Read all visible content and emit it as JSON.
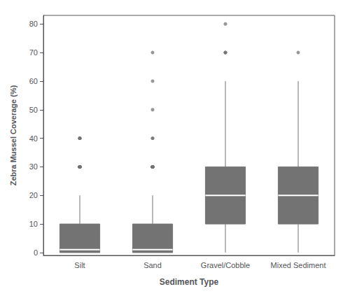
{
  "chart_data": {
    "type": "box",
    "xlabel": "Sediment Type",
    "ylabel": "Zebra Mussel Coverage (%)",
    "categories": [
      "Silt",
      "Sand",
      "Gravel/Cobble",
      "Mixed Sediment"
    ],
    "box_stats": [
      {
        "med": 1,
        "q1": 0,
        "q3": 10,
        "whislo": 0,
        "whishi": 20,
        "fliers": [
          30,
          30,
          30,
          30,
          30,
          30,
          30,
          30,
          30,
          30,
          30,
          30,
          30,
          30,
          30,
          30,
          30,
          30,
          30,
          30,
          40,
          40,
          40,
          40,
          40
        ]
      },
      {
        "med": 1,
        "q1": 0,
        "q3": 10,
        "whislo": 0,
        "whishi": 20,
        "fliers": [
          30,
          30,
          30,
          30,
          30,
          30,
          30,
          30,
          30,
          30,
          30,
          30,
          30,
          30,
          40,
          40,
          50,
          60,
          70
        ]
      },
      {
        "med": 20,
        "q1": 10,
        "q3": 30,
        "whislo": 0,
        "whishi": 60,
        "fliers": [
          70,
          70,
          70,
          80
        ]
      },
      {
        "med": 20,
        "q1": 10,
        "q3": 30,
        "whislo": 0,
        "whishi": 60,
        "fliers": [
          70
        ]
      }
    ],
    "color": "#737373",
    "ylim": [
      -1,
      83
    ],
    "yticks": [
      0,
      10,
      20,
      30,
      40,
      50,
      60,
      70,
      80
    ],
    "grid": false
  }
}
